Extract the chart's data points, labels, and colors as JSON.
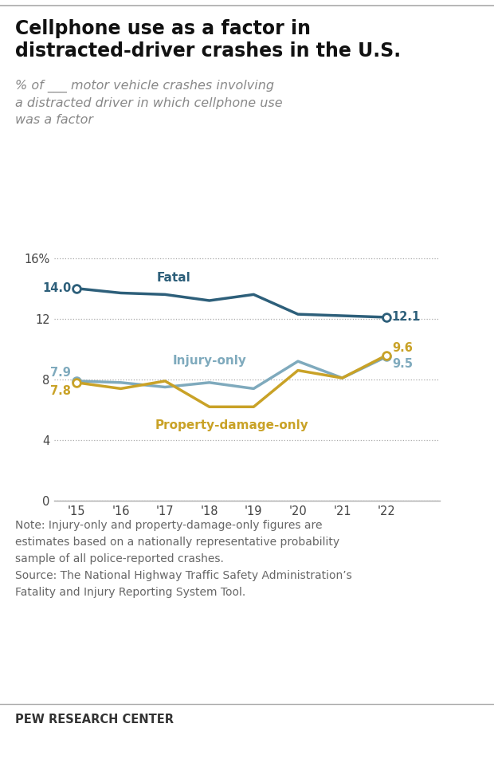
{
  "title_line1": "Cellphone use as a factor in",
  "title_line2": "distracted-driver crashes in the U.S.",
  "subtitle": "% of ___ motor vehicle crashes involving\na distracted driver in which cellphone use\nwas a factor",
  "years": [
    2015,
    2016,
    2017,
    2018,
    2019,
    2020,
    2021,
    2022
  ],
  "year_labels": [
    "'15",
    "'16",
    "'17",
    "'18",
    "'19",
    "'20",
    "'21",
    "'22"
  ],
  "fatal": [
    14.0,
    13.7,
    13.6,
    13.2,
    13.6,
    12.3,
    12.2,
    12.1
  ],
  "injury_only": [
    7.9,
    7.8,
    7.5,
    7.8,
    7.4,
    9.2,
    8.1,
    9.5
  ],
  "property_damage": [
    7.8,
    7.4,
    7.9,
    6.2,
    6.2,
    8.6,
    8.1,
    9.6
  ],
  "fatal_color": "#2d5f7a",
  "injury_color": "#7faabd",
  "property_color": "#c9a227",
  "fatal_label": "Fatal",
  "injury_label": "Injury-only",
  "property_label": "Property-damage-only",
  "note_line1": "Note: Injury-only and property-damage-only figures are",
  "note_line2": "estimates based on a nationally representative probability",
  "note_line3": "sample of all police-reported crashes.",
  "source_line1": "Source: The National Highway Traffic Safety Administration’s",
  "source_line2": "Fatality and Injury Reporting System Tool.",
  "footer_text": "PEW RESEARCH CENTER",
  "ylim": [
    0,
    17
  ],
  "yticks": [
    0,
    4,
    8,
    12,
    16
  ],
  "ytick_labels": [
    "0",
    "4",
    "8",
    "12",
    "16%"
  ],
  "bg_color": "#ffffff",
  "grid_color": "#aaaaaa",
  "axis_color": "#aaaaaa",
  "text_color": "#222222",
  "note_color": "#666666"
}
